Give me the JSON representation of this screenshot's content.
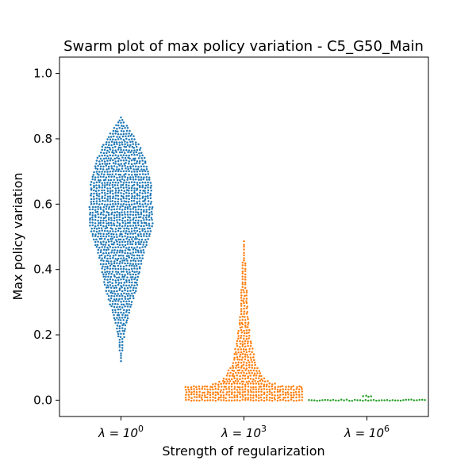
{
  "chart_data": {
    "type": "swarm",
    "title": "Swarm plot of max policy variation - C5_G50_Main",
    "xlabel": "Strength of regularization",
    "ylabel": "Max policy variation",
    "ylim": [
      -0.05,
      1.05
    ],
    "yticks": [
      {
        "value": 0.0,
        "label": "0.0"
      },
      {
        "value": 0.2,
        "label": "0.2"
      },
      {
        "value": 0.4,
        "label": "0.4"
      },
      {
        "value": 0.6,
        "label": "0.6"
      },
      {
        "value": 0.8,
        "label": "0.8"
      },
      {
        "value": 1.0,
        "label": "1.0"
      }
    ],
    "categories": [
      {
        "base": "λ = 10",
        "exp": "0"
      },
      {
        "base": "λ = 10",
        "exp": "3"
      },
      {
        "base": "λ = 10",
        "exp": "6"
      }
    ],
    "grid": false,
    "legend": "none",
    "series": [
      {
        "color": "#1f77b4",
        "distribution": {
          "min": 0.12,
          "max": 0.865
        },
        "density": [
          [
            0.12,
            1
          ],
          [
            0.18,
            2
          ],
          [
            0.22,
            4
          ],
          [
            0.26,
            6
          ],
          [
            0.3,
            9
          ],
          [
            0.34,
            12
          ],
          [
            0.38,
            14
          ],
          [
            0.42,
            16
          ],
          [
            0.46,
            18
          ],
          [
            0.5,
            22
          ],
          [
            0.54,
            24
          ],
          [
            0.58,
            24
          ],
          [
            0.62,
            23
          ],
          [
            0.66,
            23
          ],
          [
            0.7,
            21
          ],
          [
            0.74,
            18
          ],
          [
            0.78,
            14
          ],
          [
            0.82,
            8
          ],
          [
            0.85,
            3
          ],
          [
            0.865,
            1
          ]
        ]
      },
      {
        "color": "#ff7f0e",
        "distribution": {
          "min": 0.0,
          "max": 0.485
        },
        "density": [
          [
            0.0,
            60
          ],
          [
            0.015,
            60
          ],
          [
            0.035,
            60
          ],
          [
            0.05,
            22
          ],
          [
            0.07,
            15
          ],
          [
            0.09,
            12
          ],
          [
            0.11,
            9
          ],
          [
            0.13,
            8
          ],
          [
            0.15,
            7
          ],
          [
            0.17,
            6
          ],
          [
            0.2,
            5
          ],
          [
            0.24,
            4
          ],
          [
            0.28,
            3
          ],
          [
            0.32,
            3
          ],
          [
            0.36,
            2
          ],
          [
            0.4,
            2
          ],
          [
            0.44,
            1
          ],
          [
            0.485,
            1
          ]
        ]
      },
      {
        "color": "#2ca02c",
        "distribution": {
          "min": 0.0,
          "max": 0.012
        },
        "density": [
          [
            0.0,
            60
          ],
          [
            0.005,
            8
          ],
          [
            0.012,
            4
          ]
        ]
      }
    ]
  }
}
